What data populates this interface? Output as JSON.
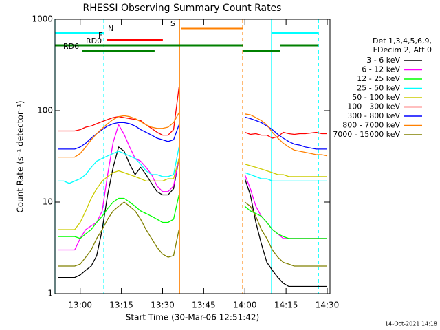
{
  "chart_data": {
    "type": "line",
    "title": "RHESSI Observing Summary Count Rates",
    "xlabel": "Start Time (30-Mar-06 12:51:42)",
    "ylabel": "Count Rate (s⁻¹ detector⁻¹)",
    "footer": "14-Oct-2021 14:18",
    "legend_header": [
      "Det 1,3,4,5,6,9,",
      "FDecim 2, Att 0"
    ],
    "log_y": true,
    "xlim": [
      50.8,
      151
    ],
    "ylim": [
      1,
      1000
    ],
    "xticks": [
      {
        "value": 60,
        "label": "13:00"
      },
      {
        "value": 75,
        "label": "13:15"
      },
      {
        "value": 90,
        "label": "13:30"
      },
      {
        "value": 105,
        "label": "13:45"
      },
      {
        "value": 120,
        "label": "14:00"
      },
      {
        "value": 135,
        "label": "14:15"
      },
      {
        "value": 150,
        "label": "14:30"
      }
    ],
    "yticks": [
      1,
      10,
      100,
      1000
    ],
    "x": [
      52,
      54,
      56,
      58,
      60,
      62,
      64,
      66,
      68,
      70,
      72,
      74,
      76,
      78,
      80,
      82,
      84,
      86,
      88,
      90,
      92,
      94,
      96,
      108,
      120,
      122,
      124,
      126,
      128,
      130,
      132,
      134,
      136,
      138,
      140,
      142,
      144,
      146,
      148,
      150
    ],
    "series": [
      {
        "name": "3 - 6 keV",
        "color": "#000000",
        "values": [
          1.5,
          1.5,
          1.5,
          1.5,
          1.6,
          1.8,
          2,
          2.6,
          5,
          12,
          24,
          40,
          36,
          26,
          20,
          24,
          20,
          16,
          13,
          12,
          12,
          14,
          30,
          null,
          18,
          12,
          6,
          3.5,
          2.2,
          1.8,
          1.5,
          1.3,
          1.2,
          1.2,
          1.2,
          1.2,
          1.2,
          1.2,
          1.2,
          1.2
        ]
      },
      {
        "name": "6 - 12 keV",
        "color": "#ff00ff",
        "values": [
          3,
          3,
          3,
          3,
          4,
          5,
          5.5,
          6,
          8,
          20,
          45,
          70,
          55,
          40,
          30,
          28,
          24,
          20,
          15,
          13,
          13,
          15,
          30,
          null,
          20,
          14,
          9,
          7,
          6,
          5,
          4.5,
          4,
          4,
          4,
          4,
          4,
          4,
          4,
          4,
          4
        ]
      },
      {
        "name": "12 - 25 keV",
        "color": "#00ff00",
        "values": [
          4.2,
          4.2,
          4.2,
          4.2,
          4,
          4.5,
          5,
          6,
          7,
          8.5,
          10,
          11,
          11,
          10,
          9,
          8,
          7.5,
          7,
          6.5,
          6,
          6,
          6.5,
          12,
          null,
          9,
          8,
          7.5,
          7,
          6,
          5,
          4.5,
          4.2,
          4,
          4,
          4,
          4,
          4,
          4,
          4,
          4
        ]
      },
      {
        "name": "25 - 50 keV",
        "color": "#00ffff",
        "values": [
          17,
          17,
          16,
          17,
          18,
          20,
          24,
          28,
          30,
          32,
          34,
          36,
          34,
          32,
          30,
          26,
          22,
          20,
          20,
          19,
          19,
          20,
          40,
          null,
          21,
          20,
          19,
          18,
          18,
          17,
          17,
          17,
          17,
          17,
          17,
          17,
          17,
          17,
          17,
          17
        ]
      },
      {
        "name": "50 - 100 keV",
        "color": "#cccc00",
        "values": [
          5,
          5,
          5,
          5,
          6,
          8,
          11,
          14,
          17,
          19,
          21,
          22,
          21,
          20,
          19,
          18,
          17,
          17,
          17,
          17,
          18,
          18,
          30,
          null,
          26,
          25,
          24,
          23,
          22,
          21,
          20,
          20,
          19,
          19,
          19,
          19,
          19,
          19,
          19,
          19
        ]
      },
      {
        "name": "100 - 300 keV",
        "color": "#ff0000",
        "values": [
          60,
          60,
          60,
          60,
          62,
          66,
          68,
          72,
          76,
          80,
          84,
          86,
          84,
          82,
          80,
          78,
          70,
          64,
          58,
          54,
          54,
          62,
          180,
          null,
          58,
          55,
          56,
          54,
          54,
          50,
          52,
          58,
          56,
          55,
          56,
          56,
          57,
          58,
          56,
          56
        ]
      },
      {
        "name": "300 - 800 keV",
        "color": "#0000ff",
        "values": [
          38,
          38,
          38,
          38,
          40,
          44,
          50,
          56,
          62,
          68,
          72,
          74,
          74,
          72,
          68,
          62,
          58,
          54,
          50,
          48,
          46,
          48,
          70,
          null,
          85,
          82,
          78,
          74,
          68,
          62,
          55,
          50,
          46,
          43,
          42,
          40,
          39,
          38,
          38,
          38
        ]
      },
      {
        "name": "800 - 7000 keV",
        "color": "#ff8000",
        "values": [
          31,
          31,
          31,
          31,
          34,
          40,
          48,
          56,
          64,
          72,
          80,
          86,
          88,
          86,
          82,
          76,
          70,
          66,
          64,
          64,
          66,
          74,
          95,
          null,
          92,
          90,
          84,
          78,
          70,
          58,
          50,
          44,
          40,
          37,
          36,
          35,
          34,
          33,
          33,
          32
        ]
      },
      {
        "name": "7000 - 15000 keV",
        "color": "#808000",
        "values": [
          2,
          2,
          2,
          2,
          2.1,
          2.5,
          3,
          4,
          5,
          6.5,
          8,
          9,
          10,
          9,
          8,
          6.5,
          5,
          4,
          3.2,
          2.7,
          2.5,
          2.6,
          5,
          null,
          10,
          9,
          7,
          5,
          4,
          3,
          2.5,
          2.2,
          2.1,
          2,
          2,
          2,
          2,
          2,
          2,
          2
        ]
      }
    ],
    "flags": [
      {
        "label": "N",
        "color": "#00ffff",
        "intervals": [
          [
            50.8,
            68.6
          ],
          [
            129.7,
            146.8
          ]
        ]
      },
      {
        "label": "F",
        "color": "#ff0000",
        "intervals": [
          [
            69.6,
            90.1
          ]
        ]
      },
      {
        "label": "S",
        "color": "#ff8000",
        "intervals": [
          [
            96.7,
            119.2
          ]
        ]
      },
      {
        "label": "RD0",
        "color": "#008000",
        "intervals": [
          [
            50.8,
            119.2
          ],
          [
            132.8,
            146.8
          ]
        ]
      },
      {
        "label": "RD6",
        "color": "#008000",
        "intervals": [
          [
            60.8,
            87.1
          ],
          [
            119.2,
            132.8
          ]
        ]
      }
    ],
    "markers": [
      {
        "value": 50.8,
        "color": "#00ffff",
        "style": "solid"
      },
      {
        "value": 68.6,
        "color": "#00ffff",
        "style": "dashed"
      },
      {
        "value": 96.2,
        "color": "#ff8000",
        "style": "solid"
      },
      {
        "value": 119.2,
        "color": "#ff8000",
        "style": "dashed"
      },
      {
        "value": 129.7,
        "color": "#00ffff",
        "style": "solid"
      },
      {
        "value": 146.8,
        "color": "#00ffff",
        "style": "dashed"
      }
    ]
  }
}
